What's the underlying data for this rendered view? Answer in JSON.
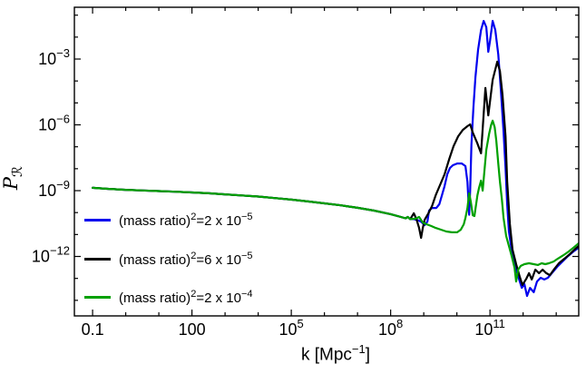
{
  "chart_data": {
    "type": "line",
    "title": "",
    "xlabel": "k [Mpc^-1]",
    "ylabel": "P_R (primordial curvature power spectrum)",
    "xlabel_parts": {
      "main": "k [Mpc",
      "sup": "−1",
      "end": "]"
    },
    "ylabel_parts": {
      "main": "P",
      "sub": "ℛ"
    },
    "background": "#ffffff",
    "frame_color": "#000000",
    "grid": false,
    "x_axis": {
      "scale": "log10",
      "range_log10": [
        -1.55,
        13.68
      ],
      "major_ticks": [
        {
          "log10": -1,
          "label": "0.1"
        },
        {
          "log10": 2,
          "label": "100"
        },
        {
          "log10": 5,
          "label": "10",
          "exp": "5"
        },
        {
          "log10": 8,
          "label": "10",
          "exp": "8"
        },
        {
          "log10": 11,
          "label": "10",
          "exp": "11"
        }
      ],
      "minor_ticks_log10": [
        0,
        1,
        3,
        4,
        6,
        7,
        9,
        10,
        12,
        13
      ]
    },
    "y_axis": {
      "scale": "log10",
      "range_log10": [
        -14.71,
        -0.64
      ],
      "major_ticks": [
        {
          "log10": -3,
          "label": "10",
          "exp": "−3"
        },
        {
          "log10": -6,
          "label": "10",
          "exp": "−6"
        },
        {
          "log10": -9,
          "label": "10",
          "exp": "−9"
        },
        {
          "log10": -12,
          "label": "10",
          "exp": "−12"
        }
      ],
      "minor_ticks_log10": [
        -1,
        -2,
        -4,
        -5,
        -7,
        -8,
        -10,
        -11,
        -13,
        -14
      ]
    },
    "shared_points_log10": [
      [
        -1,
        -8.87
      ],
      [
        -0.5,
        -8.92
      ],
      [
        0,
        -8.96
      ],
      [
        0.5,
        -8.99
      ],
      [
        1,
        -9.02
      ],
      [
        1.5,
        -9.05
      ],
      [
        2,
        -9.08
      ],
      [
        2.5,
        -9.12
      ],
      [
        3,
        -9.17
      ],
      [
        3.5,
        -9.22
      ],
      [
        4,
        -9.27
      ],
      [
        4.5,
        -9.34
      ],
      [
        5,
        -9.41
      ],
      [
        5.5,
        -9.49
      ],
      [
        6,
        -9.58
      ],
      [
        6.5,
        -9.67
      ],
      [
        7,
        -9.78
      ],
      [
        7.5,
        -9.91
      ],
      [
        8,
        -10.07
      ],
      [
        8.26,
        -10.18
      ],
      [
        8.45,
        -10.26
      ],
      [
        8.52,
        -10.2
      ],
      [
        8.59,
        -10.3
      ]
    ],
    "series": [
      {
        "name": "(mass ratio)^2 = 2 x 10^-5",
        "color": "#0000ee",
        "branch_points_log10": [
          [
            8.7,
            -10.3
          ],
          [
            8.81,
            -10.34
          ],
          [
            8.92,
            -10.42
          ],
          [
            9.03,
            -10.57
          ],
          [
            9.11,
            -10.41
          ],
          [
            9.16,
            -9.91
          ],
          [
            9.25,
            -9.79
          ],
          [
            9.38,
            -9.79
          ],
          [
            9.47,
            -9.62
          ],
          [
            9.55,
            -9.21
          ],
          [
            9.63,
            -8.79
          ],
          [
            9.71,
            -8.25
          ],
          [
            9.79,
            -7.97
          ],
          [
            9.88,
            -7.84
          ],
          [
            10.01,
            -7.76
          ],
          [
            10.15,
            -7.76
          ],
          [
            10.26,
            -7.88
          ],
          [
            10.32,
            -8.6
          ],
          [
            10.37,
            -10.1
          ],
          [
            10.4,
            -9.0
          ],
          [
            10.44,
            -6.9
          ],
          [
            10.5,
            -5.2
          ],
          [
            10.56,
            -3.83
          ],
          [
            10.64,
            -2.59
          ],
          [
            10.73,
            -1.68
          ],
          [
            10.81,
            -1.26
          ],
          [
            10.89,
            -1.55
          ],
          [
            10.95,
            -2.67
          ],
          [
            11.0,
            -2.17
          ],
          [
            11.08,
            -1.26
          ],
          [
            11.16,
            -1.68
          ],
          [
            11.25,
            -2.79
          ],
          [
            11.33,
            -4.45
          ],
          [
            11.41,
            -6.31
          ],
          [
            11.47,
            -7.97
          ],
          [
            11.52,
            -9.62
          ],
          [
            11.57,
            -10.86
          ],
          [
            11.63,
            -11.48
          ],
          [
            11.71,
            -12.1
          ],
          [
            11.79,
            -12.6
          ],
          [
            11.88,
            -13.05
          ],
          [
            11.96,
            -13.43
          ],
          [
            12.04,
            -13.26
          ],
          [
            12.12,
            -13.8
          ],
          [
            12.21,
            -13.43
          ],
          [
            12.32,
            -13.63
          ],
          [
            12.42,
            -13.14
          ],
          [
            12.53,
            -12.97
          ],
          [
            12.64,
            -13.05
          ],
          [
            12.75,
            -12.97
          ],
          [
            12.89,
            -12.72
          ],
          [
            13.03,
            -12.47
          ],
          [
            13.19,
            -12.23
          ],
          [
            13.36,
            -11.98
          ],
          [
            13.52,
            -11.77
          ],
          [
            13.68,
            -11.6
          ]
        ]
      },
      {
        "name": "(mass ratio)^2 = 6 x 10^-5",
        "color": "#000000",
        "branch_points_log10": [
          [
            8.7,
            -10.03
          ],
          [
            8.78,
            -10.3
          ],
          [
            8.86,
            -10.7
          ],
          [
            8.92,
            -11.15
          ],
          [
            8.97,
            -10.7
          ],
          [
            9.03,
            -10.32
          ],
          [
            9.14,
            -10.03
          ],
          [
            9.25,
            -9.7
          ],
          [
            9.36,
            -9.21
          ],
          [
            9.49,
            -8.75
          ],
          [
            9.63,
            -8.25
          ],
          [
            9.77,
            -7.55
          ],
          [
            9.9,
            -6.97
          ],
          [
            10.04,
            -6.52
          ],
          [
            10.18,
            -6.23
          ],
          [
            10.32,
            -6.06
          ],
          [
            10.4,
            -5.98
          ],
          [
            10.48,
            -6.35
          ],
          [
            10.62,
            -6.85
          ],
          [
            10.73,
            -7.3
          ],
          [
            10.86,
            -4.32
          ],
          [
            10.95,
            -5.57
          ],
          [
            11.08,
            -3.95
          ],
          [
            11.22,
            -3.12
          ],
          [
            11.3,
            -3.54
          ],
          [
            11.38,
            -4.65
          ],
          [
            11.47,
            -6.52
          ],
          [
            11.52,
            -8.58
          ],
          [
            11.6,
            -10.53
          ],
          [
            11.68,
            -11.69
          ],
          [
            11.79,
            -12.35
          ],
          [
            11.9,
            -12.93
          ],
          [
            11.98,
            -13.3
          ],
          [
            12.1,
            -13.01
          ],
          [
            12.18,
            -12.76
          ],
          [
            12.26,
            -13.05
          ],
          [
            12.37,
            -12.6
          ],
          [
            12.48,
            -12.76
          ],
          [
            12.59,
            -12.6
          ],
          [
            12.7,
            -12.76
          ],
          [
            12.81,
            -12.85
          ],
          [
            12.95,
            -12.56
          ],
          [
            13.08,
            -12.31
          ],
          [
            13.25,
            -12.1
          ],
          [
            13.41,
            -11.89
          ],
          [
            13.55,
            -11.69
          ],
          [
            13.68,
            -11.52
          ]
        ]
      },
      {
        "name": "(mass ratio)^2 = 2 x 10^-4",
        "color": "#00a000",
        "branch_points_log10": [
          [
            8.75,
            -10.28
          ],
          [
            8.86,
            -10.2
          ],
          [
            8.97,
            -10.45
          ],
          [
            9.08,
            -10.53
          ],
          [
            9.22,
            -10.61
          ],
          [
            9.36,
            -10.7
          ],
          [
            9.52,
            -10.78
          ],
          [
            9.68,
            -10.86
          ],
          [
            9.85,
            -10.9
          ],
          [
            10.01,
            -10.9
          ],
          [
            10.12,
            -10.78
          ],
          [
            10.21,
            -10.53
          ],
          [
            10.26,
            -10.24
          ],
          [
            10.32,
            -9.79
          ],
          [
            10.37,
            -9.12
          ],
          [
            10.42,
            -9.5
          ],
          [
            10.48,
            -10.12
          ],
          [
            10.53,
            -10.16
          ],
          [
            10.62,
            -9.21
          ],
          [
            10.67,
            -8.87
          ],
          [
            10.73,
            -8.54
          ],
          [
            10.78,
            -9.0
          ],
          [
            10.84,
            -7.97
          ],
          [
            10.89,
            -7.14
          ],
          [
            10.97,
            -6.43
          ],
          [
            11.03,
            -6.02
          ],
          [
            11.08,
            -5.81
          ],
          [
            11.14,
            -6.1
          ],
          [
            11.19,
            -6.72
          ],
          [
            11.25,
            -7.76
          ],
          [
            11.3,
            -8.58
          ],
          [
            11.36,
            -9.41
          ],
          [
            11.41,
            -10.24
          ],
          [
            11.49,
            -11.07
          ],
          [
            11.58,
            -11.56
          ],
          [
            11.66,
            -12.02
          ],
          [
            11.74,
            -12.51
          ],
          [
            11.79,
            -13.14
          ],
          [
            11.85,
            -12.6
          ],
          [
            11.93,
            -12.43
          ],
          [
            12.04,
            -12.35
          ],
          [
            12.18,
            -12.31
          ],
          [
            12.32,
            -12.35
          ],
          [
            12.45,
            -12.39
          ],
          [
            12.56,
            -12.31
          ],
          [
            12.67,
            -12.35
          ],
          [
            12.78,
            -12.31
          ],
          [
            12.92,
            -12.23
          ],
          [
            13.05,
            -12.1
          ],
          [
            13.22,
            -11.94
          ],
          [
            13.38,
            -11.77
          ],
          [
            13.52,
            -11.6
          ],
          [
            13.68,
            -11.4
          ]
        ]
      }
    ],
    "legend": {
      "position": "inside-left-bottom",
      "entries": [
        {
          "prefix": "(mass ratio)",
          "sup1": "2",
          "mid": "=2 x 10",
          "sup2": "−5",
          "color": "#0000ee"
        },
        {
          "prefix": "(mass ratio)",
          "sup1": "2",
          "mid": "=6 x 10",
          "sup2": "−5",
          "color": "#000000"
        },
        {
          "prefix": "(mass ratio)",
          "sup1": "2",
          "mid": "=2 x 10",
          "sup2": "−4",
          "color": "#00a000"
        }
      ]
    }
  }
}
